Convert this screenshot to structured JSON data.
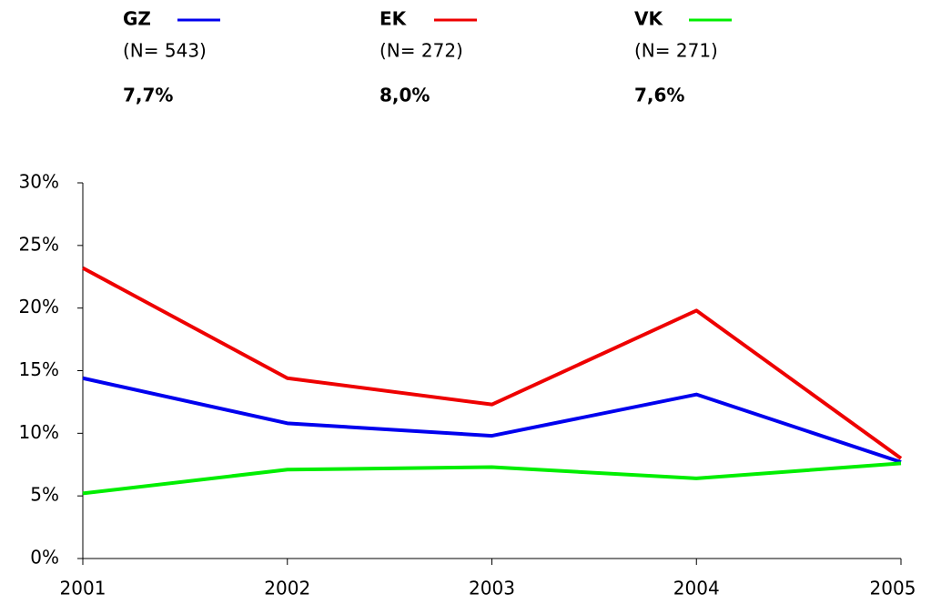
{
  "chart_data": {
    "type": "line",
    "x": [
      2001,
      2002,
      2003,
      2004,
      2005
    ],
    "xlim": [
      2001,
      2005
    ],
    "xticks": [
      2001,
      2002,
      2003,
      2004,
      2005
    ],
    "ylim": [
      0,
      30
    ],
    "yticks": [
      {
        "value": 0,
        "label": "0%"
      },
      {
        "value": 5,
        "label": "5%"
      },
      {
        "value": 10,
        "label": "10%"
      },
      {
        "value": 15,
        "label": "15%"
      },
      {
        "value": 20,
        "label": "20%"
      },
      {
        "value": 25,
        "label": "25%"
      },
      {
        "value": 30,
        "label": "30%"
      }
    ],
    "series": [
      {
        "name": "GZ",
        "n_label": "(N= 543)",
        "color": "#0000ee",
        "values": [
          14.4,
          10.8,
          9.8,
          13.1,
          7.7
        ],
        "value_labels": [
          null,
          null,
          null,
          null,
          "7,7%"
        ]
      },
      {
        "name": "EK",
        "n_label": "(N= 272)",
        "color": "#ee0000",
        "values": [
          23.2,
          14.4,
          12.3,
          19.8,
          8.0
        ],
        "value_labels": [
          null,
          null,
          null,
          null,
          "8,0%"
        ]
      },
      {
        "name": "VK",
        "n_label": "(N= 271)",
        "color": "#00ee00",
        "values": [
          5.2,
          7.1,
          7.3,
          6.4,
          7.6
        ],
        "value_labels": [
          null,
          null,
          null,
          null,
          "7,6%"
        ]
      }
    ]
  }
}
